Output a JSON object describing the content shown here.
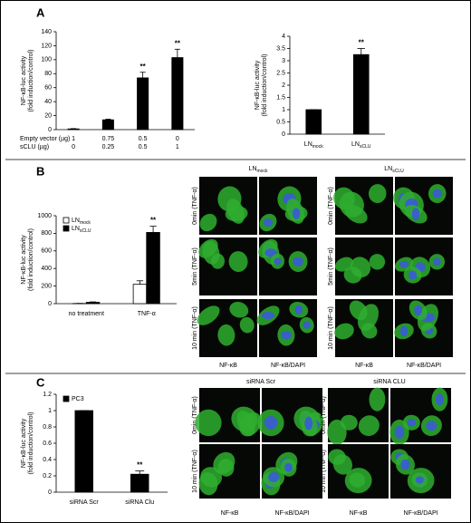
{
  "panel_labels": [
    "A",
    "B",
    "C"
  ],
  "chart_data": [
    {
      "type": "bar",
      "ylabel": [
        "NF-κB-luc activity",
        "(fold induction/control)"
      ],
      "ylim": [
        0,
        140
      ],
      "yticks": [
        0,
        20,
        40,
        60,
        80,
        100,
        120,
        140
      ],
      "category_rows": [
        {
          "label": "Empty vector (µg)",
          "labels": [
            "1",
            "0.75",
            "0.5",
            "0"
          ]
        },
        {
          "label": "sCLU (µg)",
          "labels": [
            "0",
            "0.25",
            "0.5",
            "1"
          ]
        }
      ],
      "values": [
        1,
        14,
        74,
        103
      ],
      "errors": [
        0.5,
        1,
        8,
        12
      ],
      "significance": [
        null,
        null,
        "**",
        "**"
      ],
      "color": "#000000"
    },
    {
      "type": "bar",
      "ylabel": [
        "NF-κB-luc activity",
        "(fold induction/control)"
      ],
      "ylim": [
        0,
        4
      ],
      "yticks": [
        0,
        0.5,
        1,
        1.5,
        2,
        2.5,
        3,
        3.5,
        4
      ],
      "categories": [
        "LN",
        "LN"
      ],
      "category_subscripts": [
        "mock",
        "sCLU"
      ],
      "values": [
        1,
        3.25
      ],
      "errors": [
        0,
        0.25
      ],
      "significance": [
        null,
        "**"
      ],
      "color": "#000000"
    },
    {
      "type": "bar",
      "ylabel": [
        "NF-κB-luc activity",
        "(fold induction/control)"
      ],
      "ylim": [
        0,
        1000
      ],
      "yticks": [
        0,
        200,
        400,
        600,
        800,
        1000
      ],
      "categories": [
        "no treatment",
        "TNF-α"
      ],
      "series": [
        {
          "name": "LN",
          "name_sub": "mock",
          "color": "#ffffff",
          "values": [
            2,
            220
          ],
          "errors": [
            1,
            40
          ],
          "significance": [
            null,
            null
          ]
        },
        {
          "name": "LN",
          "name_sub": "sCLU",
          "color": "#000000",
          "values": [
            15,
            810
          ],
          "errors": [
            5,
            70
          ],
          "significance": [
            null,
            "**"
          ]
        }
      ]
    },
    {
      "type": "bar",
      "ylabel": [
        "NF-κB-luc activity",
        "(fold induction/control)"
      ],
      "ylim": [
        0,
        1.2
      ],
      "yticks": [
        0,
        0.2,
        0.4,
        0.6,
        0.8,
        1,
        1.2
      ],
      "categories": [
        "siRNA Scr",
        "siRNA Clu"
      ],
      "series": [
        {
          "name": "PC3",
          "color": "#000000",
          "values": [
            1,
            0.22
          ],
          "errors": [
            0,
            0.04
          ],
          "significance": [
            null,
            "**"
          ]
        }
      ]
    }
  ],
  "micrographs": [
    {
      "groups": [
        {
          "title": "LN",
          "title_sub": "mock"
        },
        {
          "title": "LN",
          "title_sub": "sCLU"
        }
      ],
      "rows": [
        "0min (TNF-α)",
        "5min (TNF-α)",
        "10 min (TNF-α)"
      ],
      "columns": [
        "NF-κB",
        "NF-κB/DAPI",
        "NF-κB",
        "NF-κB/DAPI"
      ]
    },
    {
      "groups": [
        {
          "title": "siRNA Scr"
        },
        {
          "title": "siRNA CLU"
        }
      ],
      "rows": [
        "0min (TNF-α)",
        "10 min (TNF-α)"
      ],
      "columns": [
        "NF-κB",
        "NF-κB/DAPI",
        "NF-κB",
        "NF-κB/DAPI"
      ]
    }
  ]
}
